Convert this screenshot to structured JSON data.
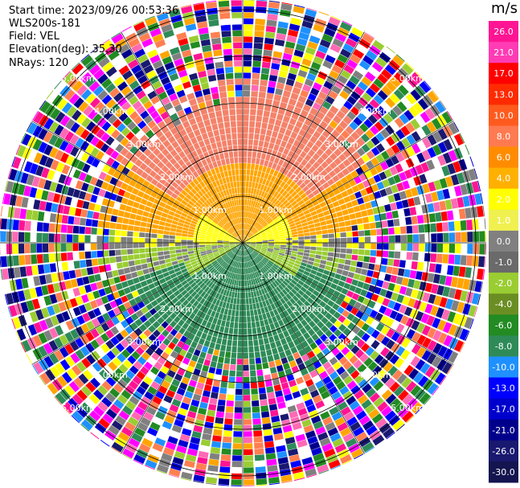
{
  "header": {
    "start_time": "Start time: 2023/09/26 00:53:36",
    "instrument": "WLS200s-181",
    "field": "Field: VEL",
    "elevation": "Elevation(deg): 35.30",
    "nrays": "NRays: 120"
  },
  "chart_data": {
    "type": "heatmap",
    "projection": "polar PPI",
    "range_ring_labels": [
      "1.00km",
      "2.00km",
      "3.00km",
      "4.00km",
      "5.00km"
    ],
    "range_rings_km": [
      1,
      2,
      3,
      4,
      5
    ],
    "n_rays": 120,
    "colorbar": {
      "unit": "m/s",
      "tick_labels": [
        "26.0",
        "21.0",
        "17.0",
        "13.0",
        "10.0",
        "8.0",
        "6.0",
        "4.0",
        "2.0",
        "1.0",
        "0.0",
        "-1.0",
        "-2.0",
        "-4.0",
        "-6.0",
        "-8.0",
        "-10.0",
        "-13.0",
        "-17.0",
        "-21.0",
        "-26.0",
        "-30.0"
      ],
      "colors": [
        "#ff1493",
        "#ff3cb4",
        "#ff0000",
        "#ff2a00",
        "#ff5a1e",
        "#ff7a50",
        "#ff8c00",
        "#ffb000",
        "#ffff00",
        "#f0f050",
        "#808080",
        "#6a6a6a",
        "#9acd32",
        "#6b8e23",
        "#228b22",
        "#2e8b57",
        "#1e90ff",
        "#0000ff",
        "#0000cd",
        "#00008b",
        "#191970",
        "#141450"
      ]
    },
    "colors": {
      "near_positive": "#ffff00",
      "positive": "#ffa500",
      "strong_positive": "#f4826a",
      "zero": "#7f7f7f",
      "near_negative": "#9acd32",
      "negative": "#2e8b57",
      "noise": [
        "#ff1493",
        "#ff00ff",
        "#0000cd",
        "#00008b",
        "#1e90ff",
        "#ffff00",
        "#ffa500",
        "#ff0000",
        "#228b22",
        "#2e8b57",
        "#808080",
        "#191970",
        "#ff69b4",
        "#0000ff",
        "#9acd32",
        "#ff7f50"
      ]
    }
  }
}
